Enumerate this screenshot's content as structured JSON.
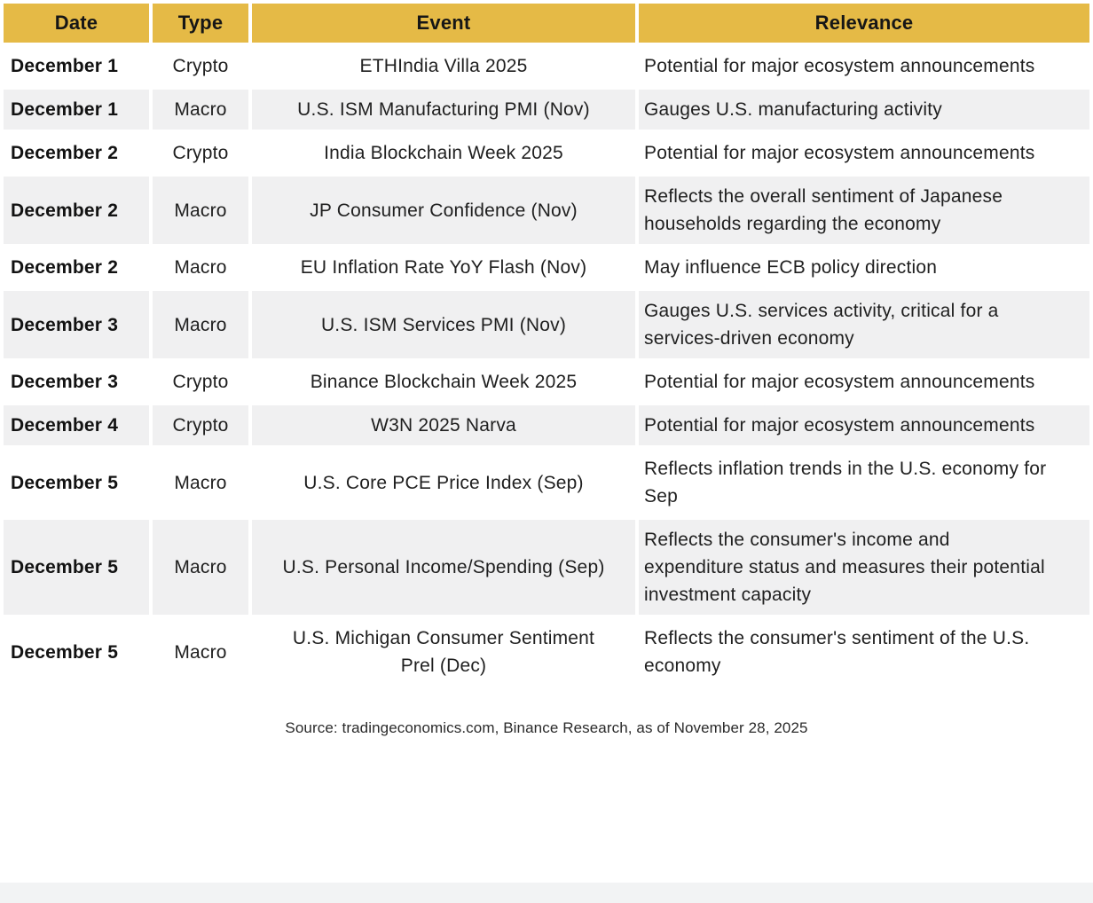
{
  "colors": {
    "header_bg": "#E5BA46",
    "stripe_bg": "#F0F0F1",
    "body_text": "#1F1F1F",
    "footer_bar_bg": "#F2F3F4"
  },
  "table": {
    "columns": [
      {
        "key": "date",
        "label": "Date"
      },
      {
        "key": "type",
        "label": "Type"
      },
      {
        "key": "event",
        "label": "Event"
      },
      {
        "key": "relevance",
        "label": "Relevance"
      }
    ],
    "rows": [
      {
        "date": "December 1",
        "type": "Crypto",
        "event": "ETHIndia Villa 2025",
        "relevance": "Potential for major ecosystem announcements"
      },
      {
        "date": "December 1",
        "type": "Macro",
        "event": "U.S. ISM Manufacturing PMI (Nov)",
        "relevance": "Gauges U.S. manufacturing activity"
      },
      {
        "date": "December 2",
        "type": "Crypto",
        "event": "India Blockchain Week 2025",
        "relevance": "Potential for major ecosystem announcements"
      },
      {
        "date": "December 2",
        "type": "Macro",
        "event": "JP Consumer Confidence (Nov)",
        "relevance": "Reflects the overall sentiment of Japanese households regarding the economy"
      },
      {
        "date": "December 2",
        "type": "Macro",
        "event": "EU Inflation Rate YoY Flash (Nov)",
        "relevance": "May influence ECB policy direction"
      },
      {
        "date": "December 3",
        "type": "Macro",
        "event": "U.S. ISM Services PMI (Nov)",
        "relevance": "Gauges U.S. services activity, critical for a services-driven economy"
      },
      {
        "date": "December 3",
        "type": "Crypto",
        "event": "Binance Blockchain Week 2025",
        "relevance": "Potential for major ecosystem announcements"
      },
      {
        "date": "December 4",
        "type": "Crypto",
        "event": "W3N 2025 Narva",
        "relevance": "Potential for major ecosystem announcements"
      },
      {
        "date": "December 5",
        "type": "Macro",
        "event": "U.S. Core PCE Price Index (Sep)",
        "relevance": "Reflects inflation trends in the U.S. economy for Sep"
      },
      {
        "date": "December 5",
        "type": "Macro",
        "event": "U.S. Personal Income/Spending (Sep)",
        "relevance": "Reflects the consumer's income and expenditure status and measures their potential investment capacity"
      },
      {
        "date": "December 5",
        "type": "Macro",
        "event": "U.S. Michigan Consumer Sentiment Prel (Dec)",
        "relevance": "Reflects the consumer's sentiment of the U.S. economy"
      }
    ]
  },
  "footer": {
    "source_note": "Source: tradingeconomics.com, Binance Research, as of November 28, 2025"
  }
}
